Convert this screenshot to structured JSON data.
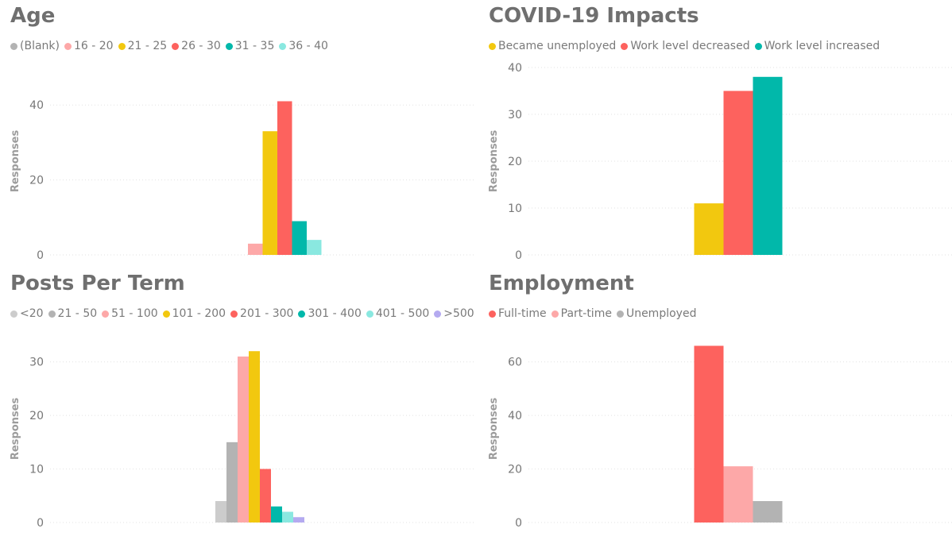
{
  "chart_data": [
    {
      "type": "bar",
      "id": "age",
      "title": "Age",
      "ylabel": "Responses",
      "xlabel": "",
      "ylim": [
        0,
        50
      ],
      "yticks": [
        0,
        20,
        40
      ],
      "categories": [
        ""
      ],
      "series": [
        {
          "name": "(Blank)",
          "color": "#b3b3b3",
          "values": [
            0
          ]
        },
        {
          "name": "16 - 20",
          "color": "#fda8a8",
          "values": [
            3
          ]
        },
        {
          "name": "21 - 25",
          "color": "#f2c80f",
          "values": [
            33
          ]
        },
        {
          "name": "26 - 30",
          "color": "#fd625e",
          "values": [
            41
          ]
        },
        {
          "name": "31 - 35",
          "color": "#01b8aa",
          "values": [
            9
          ]
        },
        {
          "name": "36 - 40",
          "color": "#8ae8e0",
          "values": [
            4
          ]
        }
      ],
      "legend": "top-left",
      "grid": true
    },
    {
      "type": "bar",
      "id": "covid",
      "title": "COVID-19 Impacts",
      "ylabel": "Responses",
      "xlabel": "",
      "ylim": [
        0,
        40
      ],
      "yticks": [
        0,
        10,
        20,
        30,
        40
      ],
      "categories": [
        ""
      ],
      "series": [
        {
          "name": "Became unemployed",
          "color": "#f2c80f",
          "values": [
            11
          ]
        },
        {
          "name": "Work level decreased",
          "color": "#fd625e",
          "values": [
            35
          ]
        },
        {
          "name": "Work level increased",
          "color": "#01b8aa",
          "values": [
            38
          ]
        }
      ],
      "legend": "top-left",
      "grid": true
    },
    {
      "type": "bar",
      "id": "posts",
      "title": "Posts Per Term",
      "ylabel": "Responses",
      "xlabel": "",
      "ylim": [
        0,
        35
      ],
      "yticks": [
        0,
        10,
        20,
        30
      ],
      "categories": [
        ""
      ],
      "series": [
        {
          "name": "<20",
          "color": "#cccccc",
          "values": [
            4
          ]
        },
        {
          "name": "21 - 50",
          "color": "#b3b3b3",
          "values": [
            15
          ]
        },
        {
          "name": "51 - 100",
          "color": "#fda8a8",
          "values": [
            31
          ]
        },
        {
          "name": "101 - 200",
          "color": "#f2c80f",
          "values": [
            32
          ]
        },
        {
          "name": "201 - 300",
          "color": "#fd625e",
          "values": [
            10
          ]
        },
        {
          "name": "301 - 400",
          "color": "#01b8aa",
          "values": [
            3
          ]
        },
        {
          "name": "401 - 500",
          "color": "#8ae8e0",
          "values": [
            2
          ]
        },
        {
          "name": ">500",
          "color": "#b4aaf0",
          "values": [
            1
          ]
        }
      ],
      "legend": "top-left",
      "grid": true
    },
    {
      "type": "bar",
      "id": "employment",
      "title": "Employment",
      "ylabel": "Responses",
      "xlabel": "",
      "ylim": [
        0,
        70
      ],
      "yticks": [
        0,
        20,
        40,
        60
      ],
      "categories": [
        ""
      ],
      "series": [
        {
          "name": "Full-time",
          "color": "#fd625e",
          "values": [
            66
          ]
        },
        {
          "name": "Part-time",
          "color": "#fda8a8",
          "values": [
            21
          ]
        },
        {
          "name": "Unemployed",
          "color": "#b3b3b3",
          "values": [
            8
          ]
        }
      ],
      "legend": "top-left",
      "grid": true
    }
  ]
}
